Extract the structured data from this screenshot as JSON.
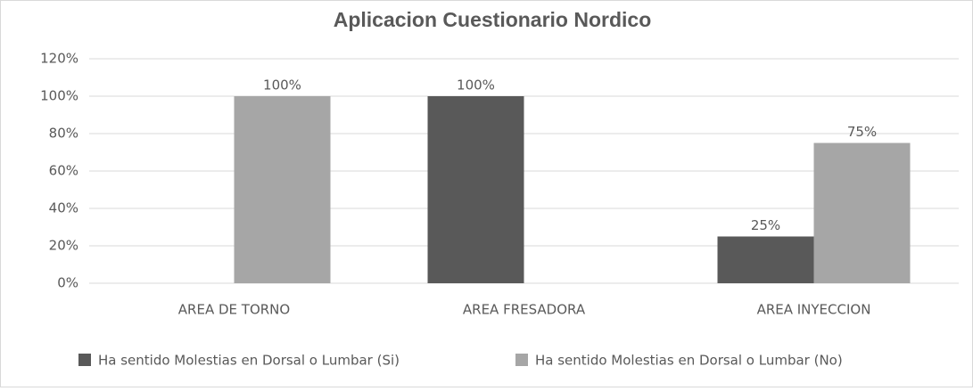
{
  "chart_data": {
    "type": "bar",
    "title": "Aplicacion Cuestionario Nordico",
    "categories": [
      "AREA DE TORNO",
      "AREA FRESADORA",
      "AREA INYECCION"
    ],
    "series": [
      {
        "name": "Ha sentido Molestias en Dorsal o Lumbar (Si)",
        "color": "#595959",
        "values": [
          null,
          100,
          25
        ],
        "value_labels": [
          null,
          "100%",
          "25%"
        ]
      },
      {
        "name": "Ha sentido Molestias en Dorsal o Lumbar (No)",
        "color": "#a6a6a6",
        "values": [
          100,
          null,
          75
        ],
        "value_labels": [
          "100%",
          null,
          "75%"
        ]
      }
    ],
    "ylim": [
      0,
      120
    ],
    "yticks": [
      {
        "value": 0,
        "label": "0%"
      },
      {
        "value": 20,
        "label": "20%"
      },
      {
        "value": 40,
        "label": "40%"
      },
      {
        "value": 60,
        "label": "60%"
      },
      {
        "value": 80,
        "label": "80%"
      },
      {
        "value": 100,
        "label": "100%"
      },
      {
        "value": 120,
        "label": "120%"
      }
    ],
    "grid": true,
    "legend": "bottom"
  }
}
